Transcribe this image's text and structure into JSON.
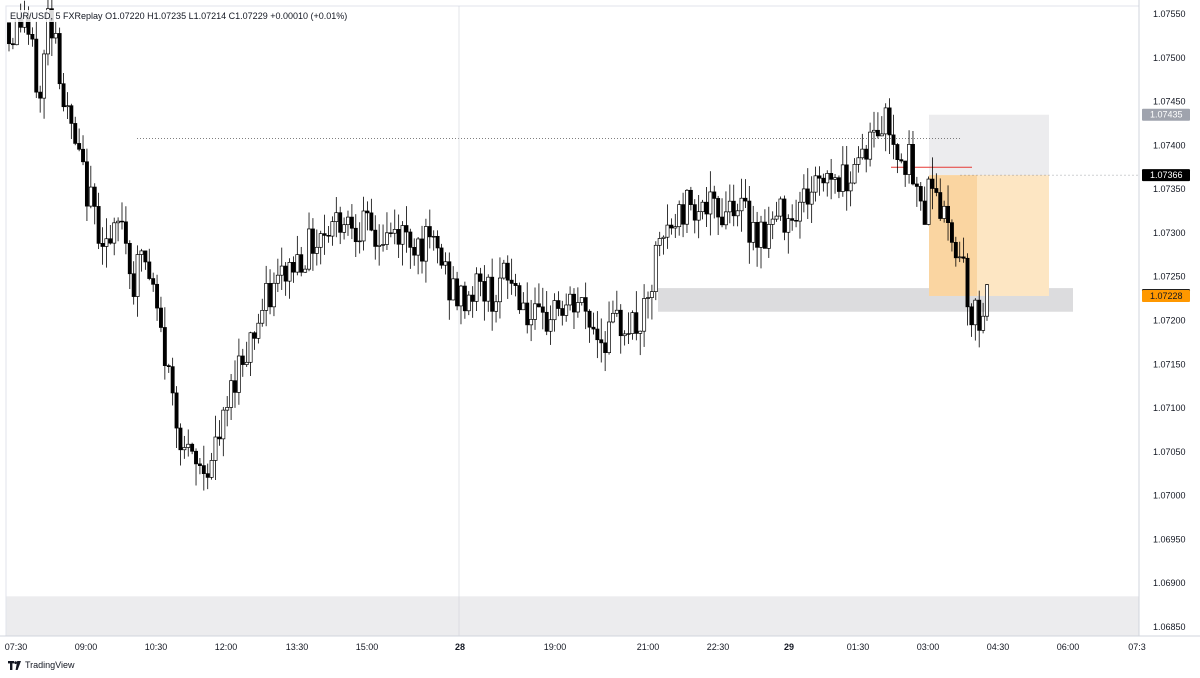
{
  "header": {
    "symbol": "EUR/USD, 5",
    "source": "FXReplay",
    "ohlc": "O1.07220 H1.07235 L1.07214 C1.07229 +0.00010 (+0.01%)"
  },
  "footer": {
    "brand": "TradingView"
  },
  "colors": {
    "up": "#ffffff",
    "down": "#000000",
    "wick": "#000000",
    "profit": "#fde6c3",
    "risk": "#ececee",
    "zone": "#dcdcde",
    "price_badge": "#000000",
    "last_badge": "#ff9800",
    "level_badge": "#9fa3ad"
  },
  "chart_data": {
    "type": "candlestick",
    "ylim": [
      1.0683,
      1.0758
    ],
    "y_ticks": [
      "1.07550",
      "1.07500",
      "1.07450",
      "1.07400",
      "1.07350",
      "1.07300",
      "1.07250",
      "1.07200",
      "1.07150",
      "1.07100",
      "1.07050",
      "1.07000",
      "1.06950",
      "1.06900",
      "1.06850"
    ],
    "x_ticks": [
      {
        "label": "07:30",
        "bold": false
      },
      {
        "label": "09:00",
        "bold": false
      },
      {
        "label": "10:30",
        "bold": false
      },
      {
        "label": "12:00",
        "bold": false
      },
      {
        "label": "13:30",
        "bold": false
      },
      {
        "label": "15:00",
        "bold": false
      },
      {
        "label": "28",
        "bold": true
      },
      {
        "label": "19:00",
        "bold": false
      },
      {
        "label": "21:00",
        "bold": false
      },
      {
        "label": "22:30",
        "bold": false
      },
      {
        "label": "29",
        "bold": true
      },
      {
        "label": "01:30",
        "bold": false
      },
      {
        "label": "03:00",
        "bold": false
      },
      {
        "label": "04:30",
        "bold": false
      },
      {
        "label": "06:00",
        "bold": false
      },
      {
        "label": "07:3",
        "bold": false
      }
    ],
    "price_badges": [
      {
        "label": "1.07435",
        "value": 1.07435,
        "kind": "level"
      },
      {
        "label": "1.07366",
        "value": 1.07366,
        "kind": "price"
      },
      {
        "label": "1.07229",
        "value": 1.07229,
        "kind": "price"
      },
      {
        "label": "1.07228",
        "value": 1.07228,
        "kind": "last"
      }
    ],
    "levels": {
      "dotted_high": 1.07408,
      "red_line": 1.07375,
      "zone_top": 1.07237,
      "zone_bottom": 1.0721,
      "long_top": 1.07435,
      "entry": 1.07366,
      "long_stop": 1.07228,
      "bottom_band_top": 1.06885,
      "bottom_band_bottom": 1.0683
    },
    "anchors": [
      [
        0,
        1.0752
      ],
      [
        4,
        1.0755
      ],
      [
        8,
        1.0745
      ],
      [
        10,
        1.0755
      ],
      [
        12,
        1.0753
      ],
      [
        14,
        1.0745
      ],
      [
        18,
        1.0738
      ],
      [
        22,
        1.0732
      ],
      [
        26,
        1.0728
      ],
      [
        29,
        1.0732
      ],
      [
        32,
        1.0724
      ],
      [
        34,
        1.0728
      ],
      [
        37,
        1.0723
      ],
      [
        40,
        1.0716
      ],
      [
        43,
        1.0709
      ],
      [
        46,
        1.0704
      ],
      [
        49,
        1.0703
      ],
      [
        52,
        1.0704
      ],
      [
        55,
        1.0708
      ],
      [
        58,
        1.0714
      ],
      [
        62,
        1.0718
      ],
      [
        66,
        1.0722
      ],
      [
        70,
        1.0725
      ],
      [
        74,
        1.0727
      ],
      [
        78,
        1.0729
      ],
      [
        82,
        1.0731
      ],
      [
        86,
        1.0732
      ],
      [
        90,
        1.0731
      ],
      [
        95,
        1.0729
      ],
      [
        100,
        1.073
      ],
      [
        105,
        1.0729
      ],
      [
        110,
        1.0728
      ],
      [
        113,
        1.0724
      ],
      [
        116,
        1.0722
      ],
      [
        120,
        1.0724
      ],
      [
        124,
        1.0723
      ],
      [
        128,
        1.0725
      ],
      [
        131,
        1.0723
      ],
      [
        134,
        1.072
      ],
      [
        137,
        1.0719
      ],
      [
        140,
        1.0722
      ],
      [
        143,
        1.0721
      ],
      [
        146,
        1.0722
      ],
      [
        149,
        1.072
      ],
      [
        152,
        1.0718
      ],
      [
        155,
        1.0719
      ],
      [
        158,
        1.072
      ],
      [
        161,
        1.0719
      ],
      [
        164,
        1.0721
      ],
      [
        166,
        1.0727
      ],
      [
        169,
        1.073
      ],
      [
        172,
        1.0732
      ],
      [
        175,
        1.0734
      ],
      [
        178,
        1.0733
      ],
      [
        182,
        1.0732
      ],
      [
        186,
        1.0734
      ],
      [
        190,
        1.0731
      ],
      [
        194,
        1.073
      ],
      [
        198,
        1.0732
      ],
      [
        202,
        1.0733
      ],
      [
        206,
        1.0735
      ],
      [
        210,
        1.0737
      ],
      [
        214,
        1.0736
      ],
      [
        218,
        1.0739
      ],
      [
        222,
        1.0741
      ],
      [
        225,
        1.0743
      ],
      [
        228,
        1.074
      ],
      [
        231,
        1.0738
      ],
      [
        233,
        1.0734
      ],
      [
        235,
        1.0733
      ],
      [
        237,
        1.0737
      ],
      [
        239,
        1.0733
      ],
      [
        241,
        1.073
      ],
      [
        243,
        1.0729
      ],
      [
        245,
        1.0727
      ],
      [
        247,
        1.072
      ],
      [
        249,
        1.0721
      ],
      [
        251,
        1.07229
      ]
    ]
  }
}
